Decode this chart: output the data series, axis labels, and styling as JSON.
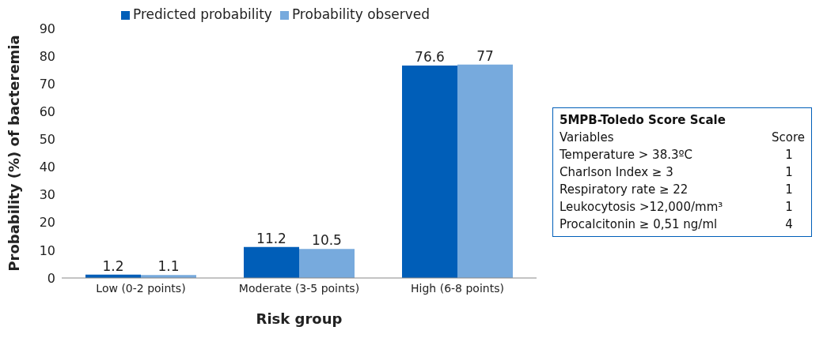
{
  "chart_data": [
    {
      "type": "bar",
      "xlabel": "Risk group",
      "ylabel": "Probability (%) of bacteremia",
      "categories": [
        "Low (0-2 points)",
        "Moderate (3-5 points)",
        "High (6-8 points)"
      ],
      "series": [
        {
          "name": "Predicted probability",
          "color": "#005eb8",
          "values": [
            1.2,
            11.2,
            76.6
          ]
        },
        {
          "name": "Probability observed",
          "color": "#77aadd",
          "values": [
            1.1,
            10.5,
            77
          ]
        }
      ],
      "ylim": [
        0,
        90
      ],
      "yticks": [
        0,
        10,
        20,
        30,
        40,
        50,
        60,
        70,
        80,
        90
      ],
      "grid": false,
      "legend": "top",
      "data_labels": true
    },
    {
      "type": "other",
      "title": "5MPB-Toledo Score Scale",
      "annotations": [
        "Variables",
        "Score"
      ],
      "categories": [
        "Temperature > 38.3ºC",
        "Charlson Index ≥ 3",
        "Respiratory rate ≥ 22",
        "Leukocytosis >12,000/mm³",
        "Procalcitonin ≥ 0,51 ng/ml"
      ],
      "values": [
        1,
        1,
        1,
        1,
        4
      ],
      "data_labels": true
    }
  ]
}
